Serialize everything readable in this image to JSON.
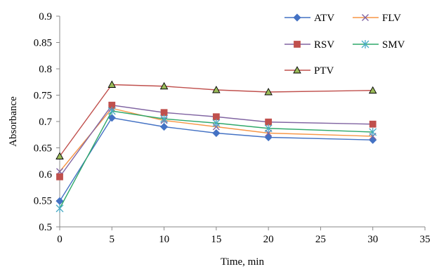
{
  "chart_data": {
    "type": "line",
    "title": "",
    "xlabel": "Time, min",
    "ylabel": "Absorbance",
    "xlim": [
      0,
      35
    ],
    "ylim": [
      0.5,
      0.9
    ],
    "xticks": [
      0,
      5,
      10,
      15,
      20,
      25,
      30,
      35
    ],
    "yticks": [
      0.5,
      0.55,
      0.6,
      0.65,
      0.7,
      0.75,
      0.8,
      0.85,
      0.9
    ],
    "xtick_labels": [
      "0",
      "5",
      "10",
      "15",
      "20",
      "25",
      "30",
      "35"
    ],
    "ytick_labels": [
      "0.5",
      "0.55",
      "0.6",
      "0.65",
      "0.7",
      "0.75",
      "0.8",
      "0.85",
      "0.9"
    ],
    "grid": false,
    "legend_position": "top-right",
    "x": [
      0,
      5,
      10,
      15,
      20,
      30
    ],
    "series": [
      {
        "name": "ATV",
        "color": "#4472c4",
        "marker": "diamond",
        "values": [
          0.549,
          0.707,
          0.69,
          0.678,
          0.67,
          0.665
        ]
      },
      {
        "name": "FLV",
        "color": "#f79646",
        "marker": "x",
        "values": [
          0.605,
          0.725,
          0.702,
          0.69,
          0.678,
          0.672
        ]
      },
      {
        "name": "RSV",
        "color": "#c0504d",
        "marker": "square",
        "values": [
          0.595,
          0.731,
          0.717,
          0.709,
          0.699,
          0.695
        ]
      },
      {
        "name": "SMV",
        "color": "#4bacc6",
        "marker": "star",
        "values": [
          0.535,
          0.72,
          0.705,
          0.697,
          0.687,
          0.68
        ]
      },
      {
        "name": "PTV",
        "color": "#c0504d",
        "marker": "triangle",
        "values": [
          0.634,
          0.77,
          0.767,
          0.76,
          0.756,
          0.759
        ]
      }
    ],
    "series_line_colors": [
      "#4472c4",
      "#f79646",
      "#8064a2",
      "#2ea86a",
      "#c0504d"
    ],
    "marker_fills": [
      "#4472c4",
      "#8064a2",
      "#c0504d",
      "#4bacc6",
      "#9bbb59"
    ]
  }
}
